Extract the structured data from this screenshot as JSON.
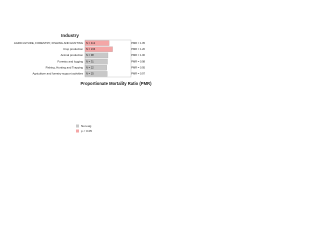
{
  "chart_data": {
    "type": "bar",
    "orientation": "horizontal",
    "y_title": "Industry",
    "x_title": "Proportionate Mortality Ratio (PMR)",
    "categories": [
      "AGRICULTURE, FORESTRY, FISHING AND HUNTING",
      "Crop production",
      "Animal production",
      "Forestry and logging",
      "Fishing, Hunting and Trapping",
      "Agriculture and forestry support activities"
    ],
    "values": [
      1.05,
      1.2,
      1.0,
      0.98,
      0.95,
      0.97
    ],
    "value_labels": [
      "PMR = 1.05",
      "PMR = 1.20",
      "PMR = 1.00",
      "PMR = 0.98",
      "PMR = 0.95",
      "PMR = 0.97"
    ],
    "count_labels": [
      "N = 412",
      "N = 236",
      "N = 98",
      "N = 31",
      "N = 22",
      "N = 25"
    ],
    "colors": [
      "#f4a6a6",
      "#f4a6a6",
      "#c8c8c8",
      "#c8c8c8",
      "#c8c8c8",
      "#c8c8c8"
    ],
    "xlim": [
      0,
      2
    ],
    "legend": [
      {
        "name": "Non-sig",
        "color": "#c8c8c8"
      },
      {
        "name": "p < 0.05",
        "color": "#f4a6a6"
      }
    ],
    "legend_position": "bottom"
  }
}
